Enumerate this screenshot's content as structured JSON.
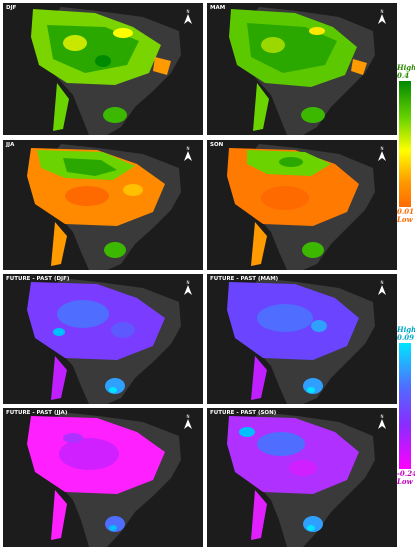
{
  "panels": [
    {
      "title": "DJF",
      "kind": "seasonal"
    },
    {
      "title": "MAM",
      "kind": "seasonal"
    },
    {
      "title": "JJA",
      "kind": "seasonal"
    },
    {
      "title": "SON",
      "kind": "seasonal"
    },
    {
      "title": "FUTURE - PAST (DJF)",
      "kind": "difference"
    },
    {
      "title": "FUTURE - PAST (MAM)",
      "kind": "difference"
    },
    {
      "title": "FUTURE - PAST (JJA)",
      "kind": "difference"
    },
    {
      "title": "FUTURE - PAST (SON)",
      "kind": "difference"
    }
  ],
  "legend_top": {
    "high_label": "High",
    "max_value": "0.4",
    "min_value": "0.01",
    "low_label": "Low",
    "colors": [
      "#008a00",
      "#6bd400",
      "#ffff00",
      "#ff9a00",
      "#ff6a00"
    ]
  },
  "legend_bottom": {
    "high_label": "High",
    "max_value": "0.09",
    "min_value": "-0.24",
    "low_label": "Low",
    "colors": [
      "#00e5ff",
      "#4f6dff",
      "#8a2bff",
      "#ff00ff"
    ]
  },
  "north_arrow_label": "N",
  "colors": {
    "background": "#1c1c1c",
    "land": "#3a3a3a"
  }
}
